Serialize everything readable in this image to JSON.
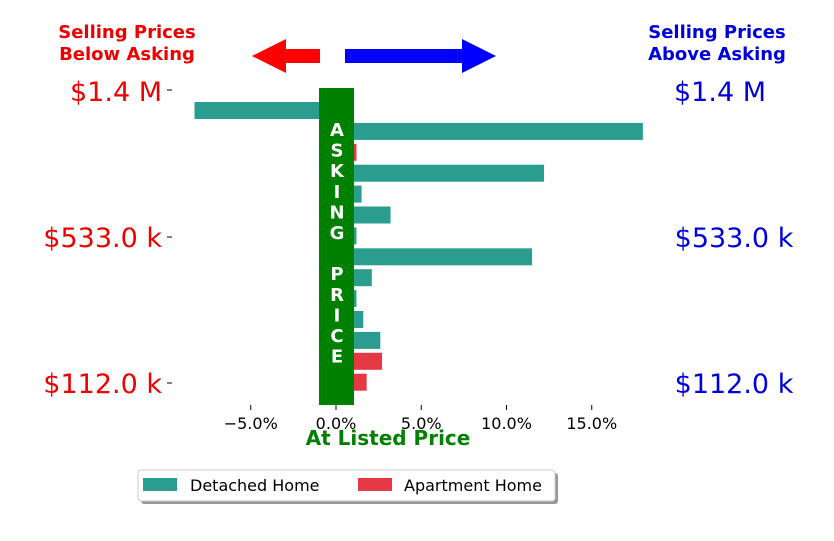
{
  "header": {
    "below_line1": "Selling Prices",
    "below_line2": "Below Asking",
    "above_line1": "Selling Prices",
    "above_line2": "Above Asking"
  },
  "colors": {
    "below": "#ee0000",
    "above": "#0000dd",
    "detached": "#2a9d8f",
    "apartment": "#e63946",
    "asking": "#008000",
    "arrow_left": "#ff0000",
    "arrow_right": "#0000ff"
  },
  "asking_label": [
    "A",
    "S",
    "K",
    "I",
    "N",
    "G",
    "",
    "P",
    "R",
    "I",
    "C",
    "E"
  ],
  "chart_data": {
    "type": "bar",
    "orientation": "horizontal",
    "xlabel": "At Listed Price",
    "x_ticks": [
      "−5.0%",
      "0.0%",
      "5.0%",
      "10.0%",
      "15.0%"
    ],
    "x_tick_values": [
      -5,
      0,
      5,
      10,
      15
    ],
    "xlim": [
      -9.5,
      20
    ],
    "price_labels_left": [
      "$1.4 M",
      "$533.0 k",
      "$112.0 k"
    ],
    "price_labels_right": [
      "$1.4 M",
      "$533.0 k",
      "$112.0 k"
    ],
    "bars": [
      {
        "series": "Detached Home",
        "value": -8.3
      },
      {
        "series": "Detached Home",
        "value": 18.0
      },
      {
        "series": "Apartment Home",
        "value": 1.2
      },
      {
        "series": "Detached Home",
        "value": 12.2
      },
      {
        "series": "Detached Home",
        "value": 1.5
      },
      {
        "series": "Detached Home",
        "value": 3.2
      },
      {
        "series": "Detached Home",
        "value": 1.2
      },
      {
        "series": "Detached Home",
        "value": 11.5
      },
      {
        "series": "Detached Home",
        "value": 2.1
      },
      {
        "series": "Detached Home",
        "value": 1.2
      },
      {
        "series": "Detached Home",
        "value": 1.6
      },
      {
        "series": "Detached Home",
        "value": 2.6
      },
      {
        "series": "Apartment Home",
        "value": 2.7
      },
      {
        "series": "Apartment Home",
        "value": 1.8
      }
    ],
    "legend": [
      "Detached Home",
      "Apartment Home"
    ],
    "legend_position": "bottom-center"
  }
}
